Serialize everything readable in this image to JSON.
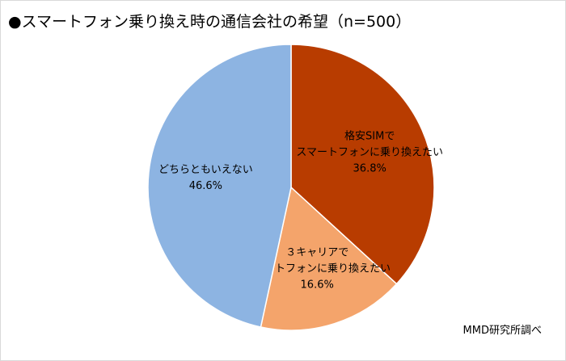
{
  "chart_data": {
    "type": "pie",
    "title": "●スマートフォン乗り換え時の通信会社の希望（n=500）",
    "start_angle_deg": 0,
    "direction": "clockwise",
    "legend": "none",
    "slices": [
      {
        "label_lines": [
          "格安SIMで",
          "スマートフォンに乗り換えたい"
        ],
        "value": 36.8,
        "value_label": "36.8%",
        "color": "#b83c00"
      },
      {
        "label_lines": [
          "３キャリアで",
          "スマートフォンに乗り換えたい"
        ],
        "value": 16.6,
        "value_label": "16.6%",
        "color": "#f4a46b"
      },
      {
        "label_lines": [
          "どちらともいえない"
        ],
        "value": 46.6,
        "value_label": "46.6%",
        "color": "#8db4e2"
      }
    ]
  },
  "source": "MMD研究所調べ"
}
